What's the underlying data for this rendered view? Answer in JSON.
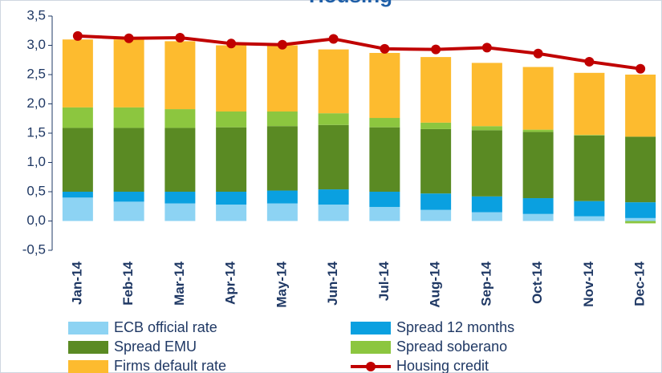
{
  "chart_data": {
    "type": "bar",
    "stacked": true,
    "title": "Housing",
    "categories": [
      "Jan-14",
      "Feb-14",
      "Mar-14",
      "Apr-14",
      "May-14",
      "Jun-14",
      "Jul-14",
      "Aug-14",
      "Sep-14",
      "Oct-14",
      "Nov-14",
      "Dec-14"
    ],
    "series": [
      {
        "name": "ECB official rate",
        "color": "#8dd3f3",
        "values": [
          0.4,
          0.33,
          0.3,
          0.28,
          0.3,
          0.28,
          0.24,
          0.19,
          0.15,
          0.12,
          0.08,
          0.05
        ]
      },
      {
        "name": "Spread 12 months",
        "color": "#0aa0e0",
        "values": [
          0.1,
          0.17,
          0.2,
          0.22,
          0.22,
          0.26,
          0.26,
          0.28,
          0.27,
          0.27,
          0.26,
          0.27
        ]
      },
      {
        "name": "Spread EMU",
        "color": "#5a8a23",
        "values": [
          1.09,
          1.09,
          1.09,
          1.1,
          1.1,
          1.1,
          1.1,
          1.1,
          1.13,
          1.13,
          1.12,
          1.12
        ]
      },
      {
        "name": "Spread soberano",
        "color": "#8cc63f",
        "values": [
          0.35,
          0.35,
          0.32,
          0.27,
          0.25,
          0.2,
          0.16,
          0.11,
          0.07,
          0.04,
          0.01,
          -0.04
        ]
      },
      {
        "name": "Firms default rate",
        "color": "#fdbb2f",
        "values": [
          1.16,
          1.16,
          1.16,
          1.13,
          1.13,
          1.09,
          1.11,
          1.12,
          1.08,
          1.07,
          1.06,
          1.06
        ]
      },
      {
        "name": "Housing credit",
        "color": "#c00000",
        "type": "line",
        "values": [
          3.16,
          3.12,
          3.13,
          3.03,
          3.01,
          3.11,
          2.94,
          2.93,
          2.96,
          2.86,
          2.72,
          2.6
        ]
      }
    ],
    "ylim": [
      -0.5,
      3.5
    ],
    "yticks": [
      {
        "value": -0.5,
        "label": "-0,5"
      },
      {
        "value": 0,
        "label": "0,0"
      },
      {
        "value": 0.5,
        "label": "0,5"
      },
      {
        "value": 1,
        "label": "1,0"
      },
      {
        "value": 1.5,
        "label": "1,5"
      },
      {
        "value": 2,
        "label": "2,0"
      },
      {
        "value": 2.5,
        "label": "2,5"
      },
      {
        "value": 3,
        "label": "3,0"
      },
      {
        "value": 3.5,
        "label": "3,5"
      }
    ],
    "grid": false,
    "legend": "bottom"
  }
}
